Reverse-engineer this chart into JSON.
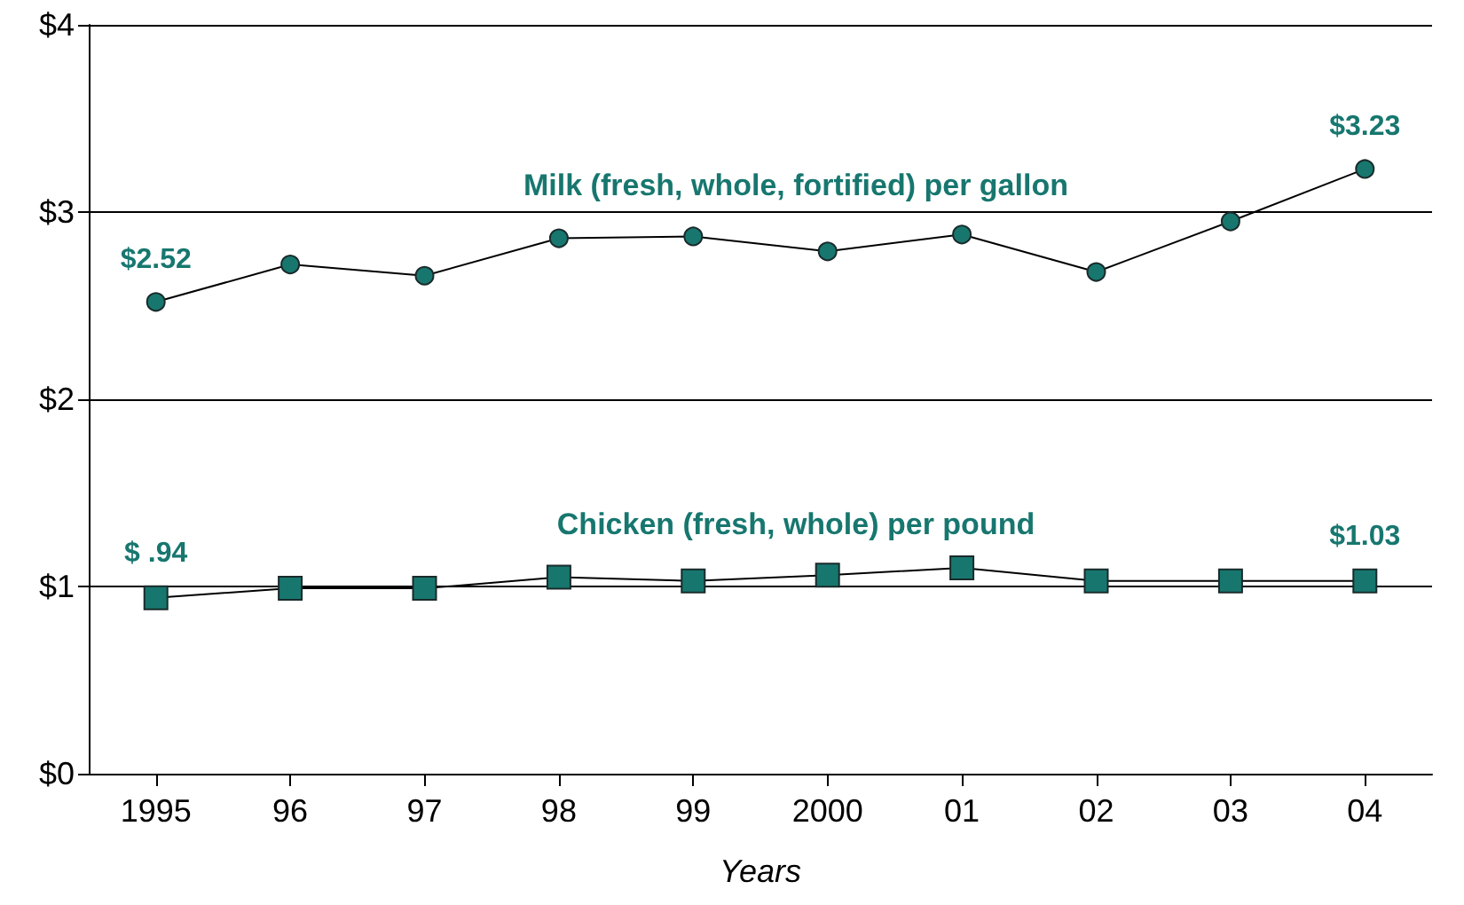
{
  "chart_data": {
    "type": "line",
    "xlabel": "Years",
    "categories": [
      "1995",
      "96",
      "97",
      "98",
      "99",
      "2000",
      "01",
      "02",
      "03",
      "04"
    ],
    "series": [
      {
        "name": "Milk (fresh, whole, fortified) per gallon",
        "color": "#17776f",
        "marker": "circle",
        "values": [
          2.52,
          2.72,
          2.66,
          2.86,
          2.87,
          2.79,
          2.88,
          2.68,
          2.95,
          3.23
        ],
        "value_labels": [
          "$2.52",
          null,
          null,
          null,
          null,
          null,
          null,
          null,
          null,
          "$3.23"
        ]
      },
      {
        "name": "Chicken (fresh, whole) per pound",
        "color": "#17776f",
        "marker": "square",
        "values": [
          0.94,
          0.99,
          0.99,
          1.05,
          1.03,
          1.06,
          1.1,
          1.03,
          1.03,
          1.03
        ],
        "value_labels": [
          "$ .94",
          null,
          null,
          null,
          null,
          null,
          null,
          null,
          null,
          "$1.03"
        ]
      }
    ],
    "ylim": [
      0,
      4
    ],
    "yticks": [
      {
        "value": 0,
        "label": "$0"
      },
      {
        "value": 1,
        "label": "$1"
      },
      {
        "value": 2,
        "label": "$2"
      },
      {
        "value": 3,
        "label": "$3"
      },
      {
        "value": 4,
        "label": "$4"
      }
    ],
    "grid": "y",
    "legend": false
  }
}
